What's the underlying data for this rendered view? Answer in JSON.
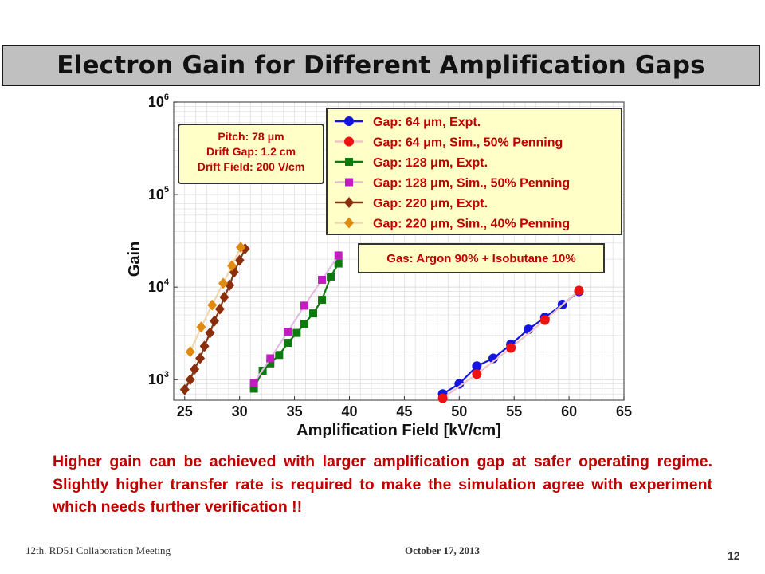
{
  "slide": {
    "title": "Electron Gain for Different Amplification Gaps",
    "caption": "Higher gain can be achieved with larger amplification gap at safer operating regime. Slightly higher transfer rate is required to make the simulation agree with experiment which needs further verification !!",
    "footer_left": "12th. RD51 Collaboration Meeting",
    "footer_date": "October 17, 2013",
    "page_number": "12"
  },
  "chart_data": {
    "type": "line",
    "xlabel": "Amplification Field [kV/cm]",
    "ylabel": "Gain",
    "xlim": [
      24,
      65
    ],
    "ylim": [
      600,
      1000000
    ],
    "y_scale": "log",
    "x_ticks": [
      25,
      30,
      35,
      40,
      45,
      50,
      55,
      60,
      65
    ],
    "y_ticks": [
      {
        "value": 1000,
        "base": "10",
        "exp": "3"
      },
      {
        "value": 10000,
        "base": "10",
        "exp": "4"
      },
      {
        "value": 100000,
        "base": "10",
        "exp": "5"
      },
      {
        "value": 1000000,
        "base": "10",
        "exp": "6"
      }
    ],
    "grid": true,
    "legend_position": "top-right",
    "info_box": [
      "Pitch: 78 μm",
      "Drift Gap: 1.2 cm",
      "Drift Field: 200 V/cm"
    ],
    "gas_box": "Gas: Argon 90% + Isobutane 10%",
    "series": [
      {
        "name": "Gap: 64 μm, Expt.",
        "color": "#1515e0",
        "line_color": "#1515e0",
        "marker": "circle",
        "x": [
          48.5,
          50,
          51.6,
          53.1,
          54.7,
          56.3,
          57.8,
          59.4,
          60.9
        ],
        "y": [
          700,
          900,
          1400,
          1700,
          2400,
          3500,
          4700,
          6500,
          9000
        ]
      },
      {
        "name": "Gap: 64 μm, Sim., 50% Penning",
        "color": "#ee1111",
        "line_color": "#f0c4c4",
        "marker": "circle",
        "x": [
          48.5,
          51.6,
          54.7,
          57.8,
          60.9
        ],
        "y": [
          630,
          1150,
          2200,
          4400,
          9200
        ]
      },
      {
        "name": "Gap: 128 μm, Expt.",
        "color": "#0d7a0d",
        "line_color": "#0d7a0d",
        "marker": "square",
        "x": [
          31.3,
          32.1,
          32.8,
          33.6,
          34.4,
          35.2,
          35.9,
          36.7,
          37.5,
          38.3,
          39
        ],
        "y": [
          800,
          1250,
          1500,
          1850,
          2500,
          3200,
          4000,
          5200,
          7300,
          13000,
          18000
        ]
      },
      {
        "name": "Gap: 128 μm, Sim., 50% Penning",
        "color": "#c21cc2",
        "line_color": "#e2bce2",
        "marker": "square",
        "x": [
          31.3,
          32.8,
          34.4,
          35.9,
          37.5,
          39
        ],
        "y": [
          920,
          1700,
          3300,
          6300,
          12000,
          22000
        ]
      },
      {
        "name": "Gap: 220 μm, Expt.",
        "color": "#8b2e0b",
        "line_color": "#7a3a1a",
        "marker": "diamond",
        "x": [
          25,
          25.5,
          25.9,
          26.4,
          26.8,
          27.3,
          27.7,
          28.2,
          28.6,
          29.1,
          29.5,
          30,
          30.5
        ],
        "y": [
          780,
          1000,
          1300,
          1700,
          2300,
          3200,
          4300,
          5800,
          7800,
          10500,
          14500,
          19500,
          26000
        ]
      },
      {
        "name": "Gap: 220 μm, Sim., 40% Penning",
        "color": "#e08a10",
        "line_color": "#f0d7b0",
        "marker": "diamond",
        "x": [
          25.5,
          26.5,
          27.5,
          28.5,
          29.3,
          30.1
        ],
        "y": [
          2000,
          3700,
          6400,
          11000,
          17000,
          27000
        ]
      }
    ]
  }
}
